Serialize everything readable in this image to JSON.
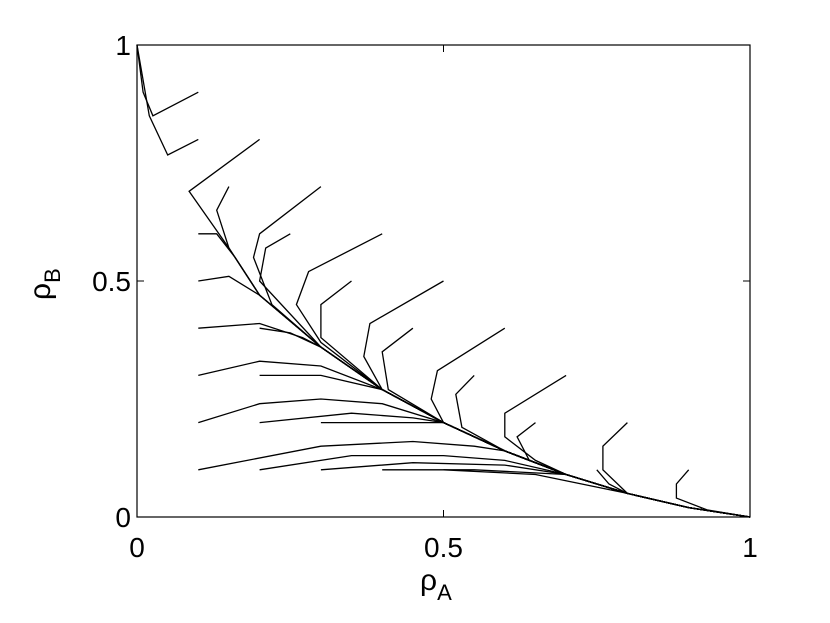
{
  "chart_data": {
    "type": "line",
    "xlabel": {
      "base": "ρ",
      "sub": "A"
    },
    "ylabel": {
      "base": "ρ",
      "sub": "B"
    },
    "xlim": [
      0,
      1
    ],
    "ylim": [
      0,
      1
    ],
    "xticks": [
      0,
      0.5,
      1
    ],
    "yticks": [
      0,
      0.5,
      1
    ],
    "color": "#000000",
    "series": [
      {
        "x": [
          0.1,
          0.026,
          0.01,
          0
        ],
        "y": [
          0.9,
          0.85,
          0.9,
          1
        ]
      },
      {
        "x": [
          0.1,
          0.05,
          0.02,
          0
        ],
        "y": [
          0.8,
          0.767,
          0.85,
          1
        ]
      },
      {
        "x": [
          0.2,
          0.085,
          0.15,
          0.2,
          0.3,
          0.4,
          0.5,
          0.6,
          0.7,
          0.8,
          0.9,
          1
        ],
        "y": [
          0.8,
          0.69,
          0.57,
          0.47,
          0.36,
          0.27,
          0.2,
          0.14,
          0.09,
          0.05,
          0.02,
          0
        ]
      },
      {
        "x": [
          0.15,
          0.13,
          0.15,
          0.2,
          0.3,
          0.4,
          0.5,
          0.6,
          0.7,
          0.8,
          0.9,
          1
        ],
        "y": [
          0.7,
          0.65,
          0.57,
          0.47,
          0.36,
          0.27,
          0.2,
          0.14,
          0.09,
          0.05,
          0.02,
          0
        ]
      },
      {
        "x": [
          0.3,
          0.2,
          0.19,
          0.22,
          0.3,
          0.4,
          0.5,
          0.6,
          0.7,
          0.8,
          0.9,
          1
        ],
        "y": [
          0.7,
          0.6,
          0.55,
          0.45,
          0.36,
          0.27,
          0.2,
          0.14,
          0.09,
          0.05,
          0.02,
          0
        ]
      },
      {
        "x": [
          0.25,
          0.21,
          0.2,
          0.3,
          0.4,
          0.5,
          0.6,
          0.7,
          0.8,
          0.9,
          1
        ],
        "y": [
          0.6,
          0.57,
          0.5,
          0.36,
          0.27,
          0.2,
          0.14,
          0.09,
          0.05,
          0.02,
          0
        ]
      },
      {
        "x": [
          0.4,
          0.28,
          0.26,
          0.3,
          0.4,
          0.5,
          0.6,
          0.7,
          0.8,
          0.9,
          1
        ],
        "y": [
          0.6,
          0.52,
          0.45,
          0.37,
          0.27,
          0.2,
          0.14,
          0.09,
          0.05,
          0.02,
          0
        ]
      },
      {
        "x": [
          0.35,
          0.3,
          0.3,
          0.4,
          0.5,
          0.6,
          0.7,
          0.8,
          0.9,
          1
        ],
        "y": [
          0.5,
          0.45,
          0.38,
          0.27,
          0.2,
          0.14,
          0.09,
          0.05,
          0.02,
          0
        ]
      },
      {
        "x": [
          0.5,
          0.38,
          0.37,
          0.4,
          0.5,
          0.6,
          0.7,
          0.8,
          0.9,
          1
        ],
        "y": [
          0.5,
          0.41,
          0.34,
          0.27,
          0.2,
          0.14,
          0.09,
          0.05,
          0.02,
          0
        ]
      },
      {
        "x": [
          0.45,
          0.4,
          0.41,
          0.5,
          0.6,
          0.7,
          0.8,
          0.9,
          1
        ],
        "y": [
          0.4,
          0.35,
          0.27,
          0.2,
          0.14,
          0.09,
          0.05,
          0.02,
          0
        ]
      },
      {
        "x": [
          0.6,
          0.49,
          0.48,
          0.5,
          0.6,
          0.7,
          0.8,
          0.9,
          1
        ],
        "y": [
          0.4,
          0.31,
          0.25,
          0.2,
          0.14,
          0.09,
          0.05,
          0.02,
          0
        ]
      },
      {
        "x": [
          0.55,
          0.52,
          0.53,
          0.6,
          0.7,
          0.8,
          0.9,
          1
        ],
        "y": [
          0.3,
          0.26,
          0.19,
          0.14,
          0.09,
          0.05,
          0.02,
          0
        ]
      },
      {
        "x": [
          0.7,
          0.6,
          0.6,
          0.65,
          0.7,
          0.8,
          0.9,
          1
        ],
        "y": [
          0.3,
          0.22,
          0.17,
          0.12,
          0.09,
          0.05,
          0.02,
          0
        ]
      },
      {
        "x": [
          0.65,
          0.62,
          0.64,
          0.7,
          0.8,
          0.9,
          1
        ],
        "y": [
          0.2,
          0.17,
          0.12,
          0.09,
          0.05,
          0.02,
          0
        ]
      },
      {
        "x": [
          0.8,
          0.76,
          0.76,
          0.8,
          0.9,
          1
        ],
        "y": [
          0.2,
          0.15,
          0.1,
          0.05,
          0.02,
          0
        ]
      },
      {
        "x": [
          0.75,
          0.77,
          0.8,
          0.9,
          1
        ],
        "y": [
          0.1,
          0.07,
          0.05,
          0.02,
          0
        ]
      },
      {
        "x": [
          0.9,
          0.88,
          0.88,
          0.93,
          1
        ],
        "y": [
          0.1,
          0.07,
          0.04,
          0.015,
          0
        ]
      },
      {
        "x": [
          0.1,
          0.13,
          0.16,
          0.2,
          0.3,
          0.4,
          0.5,
          0.6,
          0.7,
          0.8,
          0.9,
          1
        ],
        "y": [
          0.6,
          0.6,
          0.55,
          0.47,
          0.36,
          0.27,
          0.2,
          0.14,
          0.09,
          0.05,
          0.02,
          0
        ]
      },
      {
        "x": [
          0.1,
          0.15,
          0.2,
          0.3,
          0.4,
          0.5,
          0.6,
          0.7,
          0.8,
          0.9,
          1
        ],
        "y": [
          0.5,
          0.51,
          0.47,
          0.36,
          0.27,
          0.2,
          0.14,
          0.09,
          0.05,
          0.02,
          0
        ]
      },
      {
        "x": [
          0.1,
          0.2,
          0.27,
          0.3,
          0.4,
          0.5,
          0.6,
          0.7,
          0.8,
          0.9,
          1
        ],
        "y": [
          0.4,
          0.41,
          0.38,
          0.36,
          0.27,
          0.2,
          0.14,
          0.09,
          0.05,
          0.02,
          0
        ]
      },
      {
        "x": [
          0.1,
          0.2,
          0.3,
          0.4,
          0.5,
          0.6,
          0.7,
          0.8,
          0.9,
          1
        ],
        "y": [
          0.3,
          0.33,
          0.32,
          0.27,
          0.2,
          0.14,
          0.09,
          0.05,
          0.02,
          0
        ]
      },
      {
        "x": [
          0.1,
          0.2,
          0.3,
          0.4,
          0.5,
          0.6,
          0.7,
          0.8,
          0.9,
          1
        ],
        "y": [
          0.2,
          0.24,
          0.25,
          0.24,
          0.2,
          0.14,
          0.09,
          0.05,
          0.02,
          0
        ]
      },
      {
        "x": [
          0.1,
          0.3,
          0.45,
          0.55,
          0.6,
          0.7,
          0.8,
          0.9,
          1
        ],
        "y": [
          0.1,
          0.15,
          0.16,
          0.15,
          0.14,
          0.09,
          0.05,
          0.02,
          0
        ]
      },
      {
        "x": [
          0.2,
          0.25,
          0.3,
          0.4,
          0.5,
          0.6,
          0.7,
          0.8,
          0.9,
          1
        ],
        "y": [
          0.4,
          0.39,
          0.36,
          0.27,
          0.2,
          0.14,
          0.09,
          0.05,
          0.02,
          0
        ]
      },
      {
        "x": [
          0.2,
          0.3,
          0.4,
          0.5,
          0.6,
          0.7,
          0.8,
          0.9,
          1
        ],
        "y": [
          0.3,
          0.3,
          0.27,
          0.2,
          0.14,
          0.09,
          0.05,
          0.02,
          0
        ]
      },
      {
        "x": [
          0.2,
          0.35,
          0.45,
          0.5,
          0.6,
          0.7,
          0.8,
          0.9,
          1
        ],
        "y": [
          0.2,
          0.22,
          0.21,
          0.2,
          0.14,
          0.09,
          0.05,
          0.02,
          0
        ]
      },
      {
        "x": [
          0.2,
          0.35,
          0.5,
          0.6,
          0.7,
          0.8,
          0.9,
          1
        ],
        "y": [
          0.1,
          0.13,
          0.13,
          0.12,
          0.09,
          0.05,
          0.02,
          0
        ]
      },
      {
        "x": [
          0.3,
          0.4,
          0.5,
          0.6,
          0.7,
          0.8,
          0.9,
          1
        ],
        "y": [
          0.2,
          0.2,
          0.2,
          0.14,
          0.09,
          0.05,
          0.02,
          0
        ]
      },
      {
        "x": [
          0.3,
          0.45,
          0.6,
          0.7,
          0.8,
          0.9,
          1
        ],
        "y": [
          0.1,
          0.115,
          0.11,
          0.09,
          0.05,
          0.02,
          0
        ]
      },
      {
        "x": [
          0.4,
          0.55,
          0.7,
          0.8,
          0.9,
          1
        ],
        "y": [
          0.1,
          0.1,
          0.09,
          0.05,
          0.02,
          0
        ]
      },
      {
        "x": [
          0.5,
          0.65,
          0.8,
          0.9,
          1
        ],
        "y": [
          0.1,
          0.09,
          0.05,
          0.02,
          0
        ]
      }
    ]
  }
}
